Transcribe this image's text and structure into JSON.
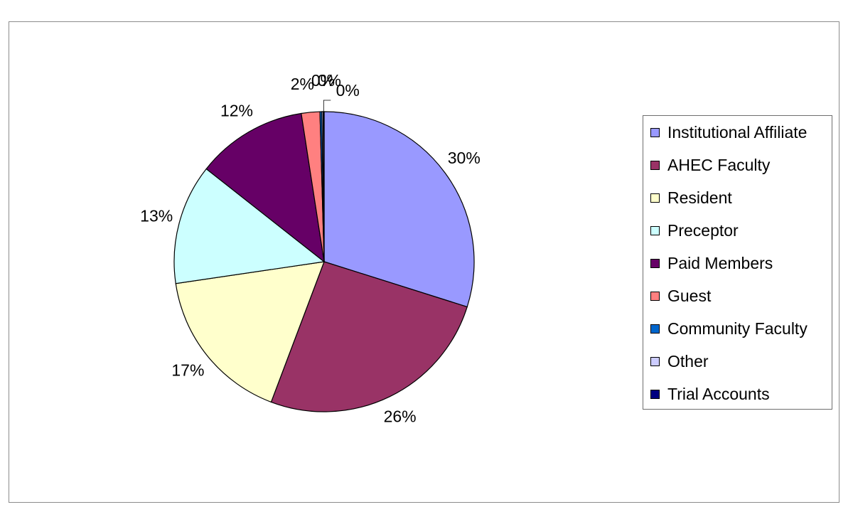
{
  "chart_data": {
    "type": "pie",
    "title": "",
    "legend_position": "right",
    "slices": [
      {
        "label": "Institutional Affiliate",
        "value": 30,
        "value_label": "30%",
        "color": "#9999FF"
      },
      {
        "label": "AHEC Faculty",
        "value": 26,
        "value_label": "26%",
        "color": "#993366"
      },
      {
        "label": "Resident",
        "value": 17,
        "value_label": "17%",
        "color": "#FFFFCC"
      },
      {
        "label": "Preceptor",
        "value": 13,
        "value_label": "13%",
        "color": "#CCFFFF"
      },
      {
        "label": "Paid Members",
        "value": 12,
        "value_label": "12%",
        "color": "#660066"
      },
      {
        "label": "Guest",
        "value": 2,
        "value_label": "2%",
        "color": "#FF8080"
      },
      {
        "label": "Community Faculty",
        "value": 0.2,
        "value_label": "0%",
        "color": "#0066CC"
      },
      {
        "label": "Other",
        "value": 0.15,
        "value_label": "0%",
        "color": "#CCCCFF"
      },
      {
        "label": "Trial Accounts",
        "value": 0.1,
        "value_label": "0%",
        "color": "#000080"
      }
    ]
  }
}
